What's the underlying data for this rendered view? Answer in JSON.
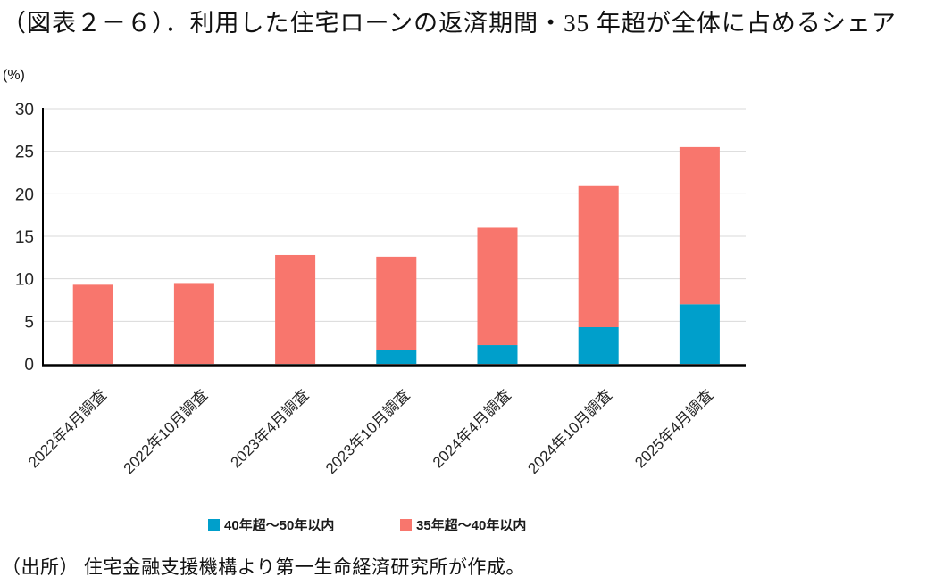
{
  "header": {
    "title": "（図表２－６）．利用した住宅ローンの返済期間・35 年超が全体に占めるシェア",
    "unit_label": "(%)"
  },
  "footer": {
    "source": "（出所） 住宅金融支援機構より第一生命経済研究所が作成。"
  },
  "chart_data": {
    "type": "bar",
    "stacked": true,
    "title": "利用した住宅ローンの返済期間・35 年超が全体に占めるシェア",
    "ylabel": "(%)",
    "xlabel": "",
    "categories": [
      "2022年4月調査",
      "2022年10月調査",
      "2023年4月調査",
      "2023年10月調査",
      "2024年4月調査",
      "2024年10月調査",
      "2025年4月調査"
    ],
    "series": [
      {
        "name": "40年超～50年以内",
        "color": "#009FCB",
        "values": [
          0,
          0,
          0,
          1.6,
          2.2,
          4.3,
          7.0
        ]
      },
      {
        "name": "35年超～40年以内",
        "color": "#F8766D",
        "values": [
          9.3,
          9.5,
          12.8,
          11.0,
          13.8,
          16.6,
          18.5
        ]
      }
    ],
    "totals": [
      9.3,
      9.5,
      12.8,
      12.6,
      16.0,
      20.9,
      25.5
    ],
    "ylim": [
      0,
      30
    ],
    "yticks": [
      0,
      5,
      10,
      15,
      20,
      25,
      30
    ],
    "grid": true,
    "gridline_color": "#d9d9d9",
    "axis_color": "#000000",
    "legend_position": "bottom",
    "x_tick_rotation_deg": 45
  }
}
